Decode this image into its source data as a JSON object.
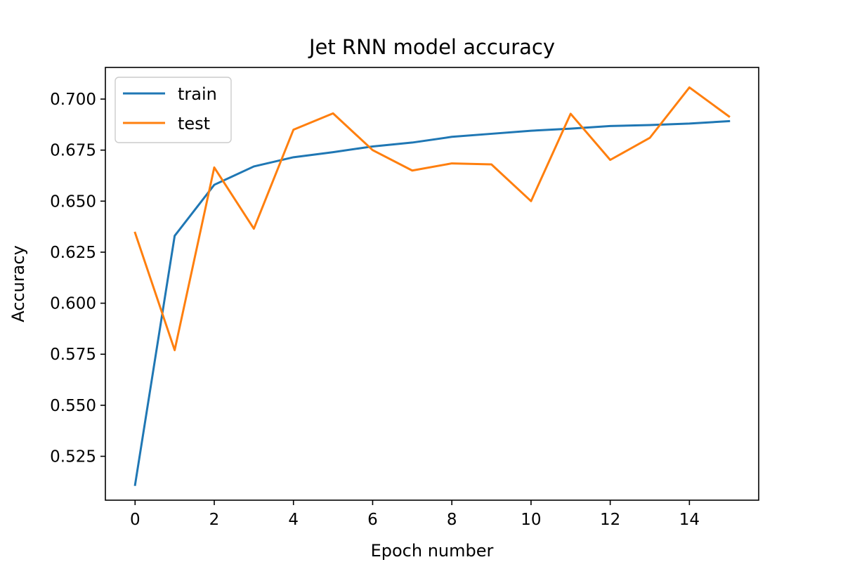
{
  "chart_data": {
    "type": "line",
    "title": "Jet RNN model accuracy",
    "xlabel": "Epoch number",
    "ylabel": "Accuracy",
    "xlim": [
      -0.75,
      15.75
    ],
    "ylim": [
      0.5035,
      0.7155
    ],
    "xticks": [
      0,
      2,
      4,
      6,
      8,
      10,
      12,
      14
    ],
    "xtick_labels": [
      "0",
      "2",
      "4",
      "6",
      "8",
      "10",
      "12",
      "14"
    ],
    "yticks": [
      0.525,
      0.55,
      0.575,
      0.6,
      0.625,
      0.65,
      0.675,
      0.7
    ],
    "ytick_labels": [
      "0.525",
      "0.550",
      "0.575",
      "0.600",
      "0.625",
      "0.650",
      "0.675",
      "0.700"
    ],
    "grid": false,
    "legend_position": "upper-left",
    "x": [
      0,
      1,
      2,
      3,
      4,
      5,
      6,
      7,
      8,
      9,
      10,
      11,
      12,
      13,
      14,
      15
    ],
    "series": [
      {
        "name": "train",
        "color": "#1f77b4",
        "values": [
          0.511,
          0.633,
          0.658,
          0.667,
          0.6715,
          0.674,
          0.6768,
          0.6787,
          0.6815,
          0.683,
          0.6845,
          0.6855,
          0.6868,
          0.6873,
          0.688,
          0.6892
        ]
      },
      {
        "name": "test",
        "color": "#ff7f0e",
        "values": [
          0.6345,
          0.577,
          0.6665,
          0.6365,
          0.685,
          0.693,
          0.675,
          0.665,
          0.6685,
          0.668,
          0.65,
          0.6928,
          0.6702,
          0.681,
          0.7057,
          0.6915
        ]
      }
    ]
  }
}
